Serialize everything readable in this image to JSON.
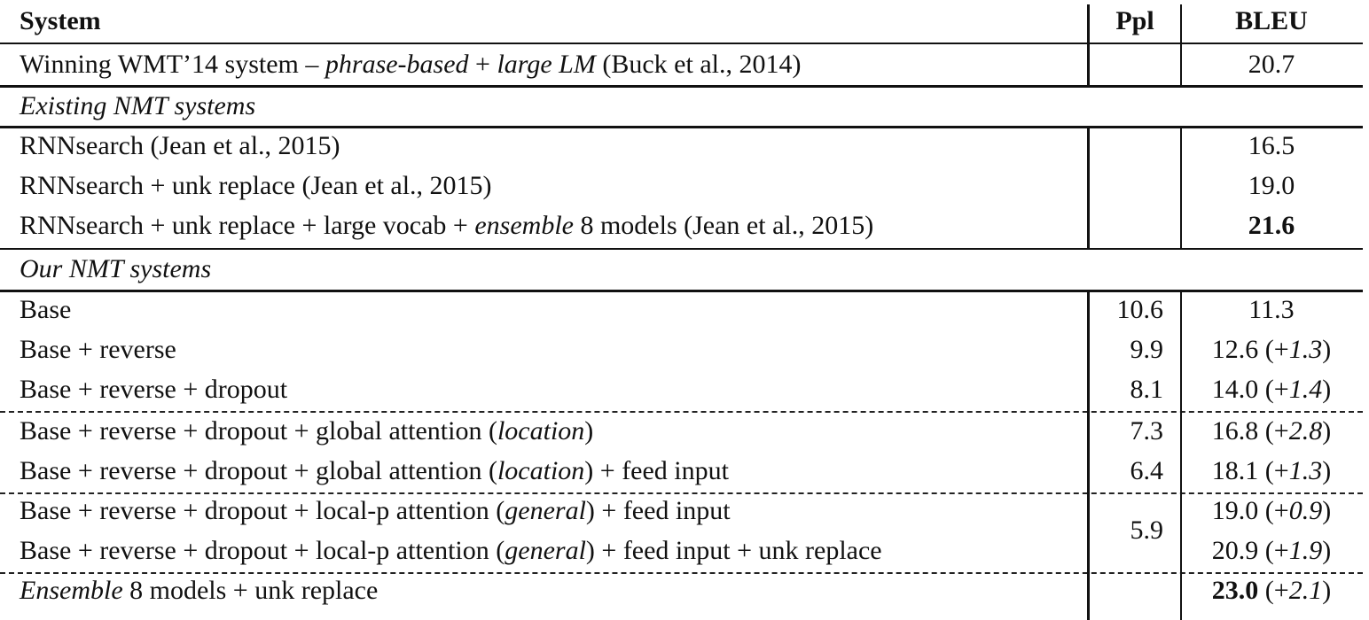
{
  "header": {
    "system": "System",
    "ppl": "Ppl",
    "bleu": "BLEU"
  },
  "rows": [
    {
      "kind": "row",
      "system": [
        {
          "t": "Winning WMT’14 system – "
        },
        {
          "t": "phrase-based",
          "i": true
        },
        {
          "t": " + "
        },
        {
          "t": "large LM",
          "i": true
        },
        {
          "t": " (Buck et al., 2014)"
        }
      ],
      "ppl": "",
      "bleu": [
        {
          "t": "20.7"
        }
      ]
    },
    {
      "kind": "section",
      "system": [
        {
          "t": "Existing NMT systems",
          "i": true
        }
      ]
    },
    {
      "kind": "row",
      "system": [
        {
          "t": "RNNsearch (Jean et al., 2015)"
        }
      ],
      "ppl": "",
      "bleu": [
        {
          "t": "16.5"
        }
      ]
    },
    {
      "kind": "row",
      "system": [
        {
          "t": "RNNsearch + unk replace (Jean et al., 2015)"
        }
      ],
      "ppl": "",
      "bleu": [
        {
          "t": "19.0"
        }
      ]
    },
    {
      "kind": "row",
      "system": [
        {
          "t": "RNNsearch + unk replace + large vocab + "
        },
        {
          "t": "ensemble",
          "i": true
        },
        {
          "t": " 8 models (Jean et al., 2015)"
        }
      ],
      "ppl": "",
      "bleu": [
        {
          "t": "21.6",
          "b": true
        }
      ]
    },
    {
      "kind": "section",
      "system": [
        {
          "t": "Our NMT systems",
          "i": true
        }
      ]
    },
    {
      "kind": "row",
      "system": [
        {
          "t": "Base"
        }
      ],
      "ppl": "10.6",
      "bleu": [
        {
          "t": "11.3"
        }
      ]
    },
    {
      "kind": "row",
      "system": [
        {
          "t": "Base + reverse"
        }
      ],
      "ppl": "9.9",
      "bleu": [
        {
          "t": "12.6 (+"
        },
        {
          "t": "1.3",
          "i": true
        },
        {
          "t": ")"
        }
      ]
    },
    {
      "kind": "row",
      "system": [
        {
          "t": "Base + reverse + dropout"
        }
      ],
      "ppl": "8.1",
      "bleu": [
        {
          "t": "14.0 (+"
        },
        {
          "t": "1.4",
          "i": true
        },
        {
          "t": ")"
        }
      ]
    },
    {
      "kind": "row",
      "system": [
        {
          "t": "Base + reverse + dropout + global attention ("
        },
        {
          "t": "location",
          "i": true
        },
        {
          "t": ")"
        }
      ],
      "ppl": "7.3",
      "bleu": [
        {
          "t": "16.8 (+"
        },
        {
          "t": "2.8",
          "i": true
        },
        {
          "t": ")"
        }
      ]
    },
    {
      "kind": "row",
      "system": [
        {
          "t": "Base + reverse + dropout + global attention ("
        },
        {
          "t": "location",
          "i": true
        },
        {
          "t": ") + feed input"
        }
      ],
      "ppl": "6.4",
      "bleu": [
        {
          "t": "18.1 (+"
        },
        {
          "t": "1.3",
          "i": true
        },
        {
          "t": ")"
        }
      ]
    },
    {
      "kind": "row",
      "system": [
        {
          "t": "Base + reverse + dropout + local-p attention ("
        },
        {
          "t": "general",
          "i": true
        },
        {
          "t": ") + feed input"
        }
      ],
      "ppl": "5.9",
      "ppl_span": 2,
      "bleu": [
        {
          "t": "19.0 (+"
        },
        {
          "t": "0.9",
          "i": true
        },
        {
          "t": ")"
        }
      ]
    },
    {
      "kind": "row",
      "system": [
        {
          "t": "Base + reverse + dropout + local-p attention ("
        },
        {
          "t": "general",
          "i": true
        },
        {
          "t": ") + feed input + unk replace"
        }
      ],
      "ppl": "",
      "bleu": [
        {
          "t": "20.9 (+"
        },
        {
          "t": "1.9",
          "i": true
        },
        {
          "t": ")"
        }
      ]
    },
    {
      "kind": "row",
      "system": [
        {
          "t": "Ensemble",
          "i": true
        },
        {
          "t": " 8 models + unk replace"
        }
      ],
      "ppl": "",
      "bleu": [
        {
          "t": "23.0",
          "b": true
        },
        {
          "t": " (+"
        },
        {
          "t": "2.1",
          "i": true
        },
        {
          "t": ")"
        }
      ]
    }
  ]
}
